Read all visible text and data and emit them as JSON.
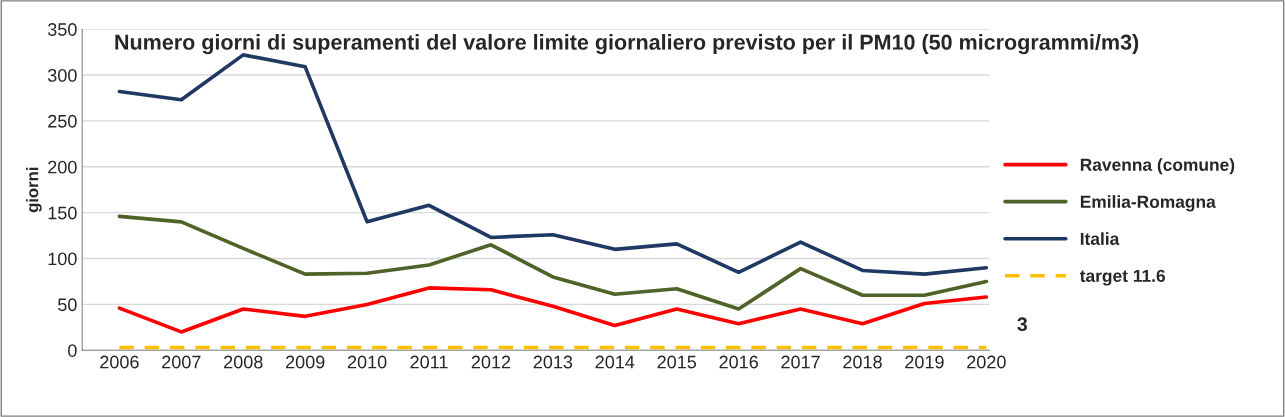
{
  "chart_data": {
    "type": "line",
    "title": "Numero giorni di superamenti del valore limite giornaliero previsto per il PM10 (50 microgrammi/m3)",
    "ylabel": "giorni",
    "categories": [
      "2006",
      "2007",
      "2008",
      "2009",
      "2010",
      "2011",
      "2012",
      "2013",
      "2014",
      "2015",
      "2016",
      "2017",
      "2018",
      "2019",
      "2020"
    ],
    "series": [
      {
        "name": "Ravenna (comune)",
        "color": "#ff0000",
        "values": [
          46,
          20,
          45,
          37,
          50,
          68,
          66,
          48,
          27,
          45,
          29,
          45,
          29,
          51,
          58
        ]
      },
      {
        "name": "Emilia-Romagna",
        "color": "#4f6228",
        "values": [
          146,
          140,
          111,
          83,
          84,
          93,
          115,
          80,
          61,
          67,
          45,
          89,
          60,
          60,
          75
        ]
      },
      {
        "name": "Italia",
        "color": "#1f3864",
        "values": [
          282,
          273,
          322,
          309,
          140,
          158,
          123,
          126,
          110,
          116,
          85,
          118,
          87,
          83,
          90
        ]
      },
      {
        "name": "target 11.6",
        "color": "#ffc000",
        "line_style": "dashed",
        "values": [
          3,
          3,
          3,
          3,
          3,
          3,
          3,
          3,
          3,
          3,
          3,
          3,
          3,
          3,
          3
        ]
      }
    ],
    "annotations": [
      {
        "text": "3",
        "x": "2020",
        "y": 3
      }
    ],
    "ylim": [
      0,
      350
    ],
    "yticks": [
      0,
      50,
      100,
      150,
      200,
      250,
      300,
      350
    ],
    "grid": "y",
    "legend": "right"
  }
}
